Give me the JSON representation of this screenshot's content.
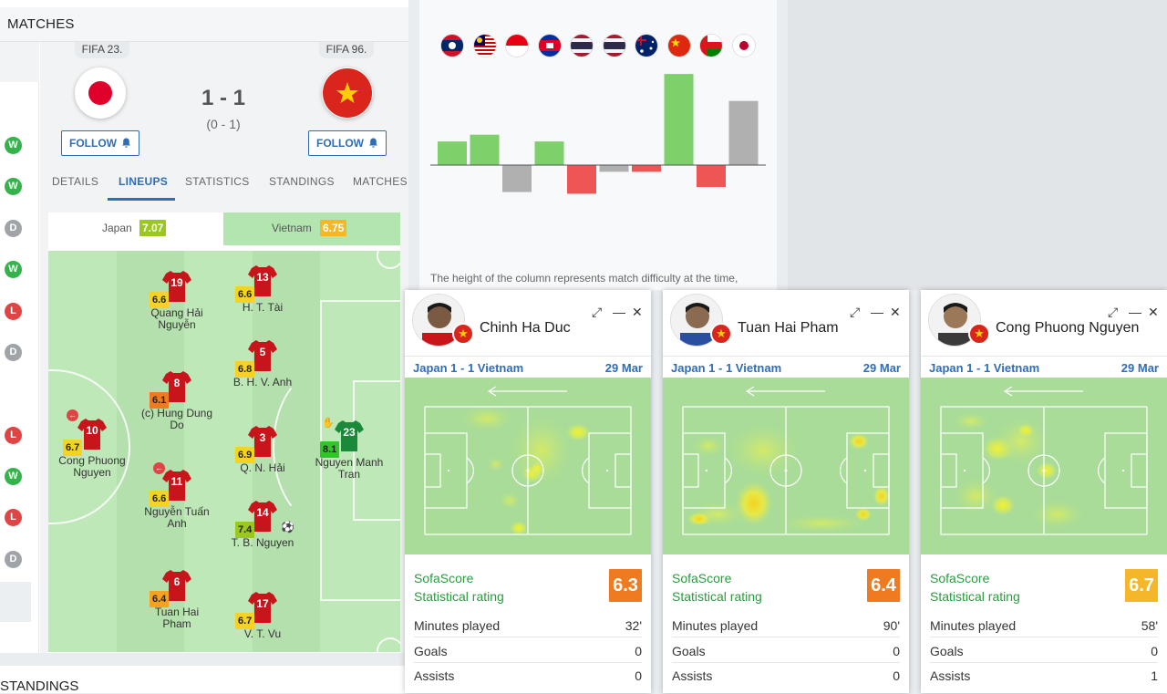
{
  "matches_header": "MATCHES",
  "standings_header": "STANDINGS",
  "form": [
    "W",
    "W",
    "D",
    "W",
    "L",
    "D",
    "L",
    "W",
    "L",
    "D"
  ],
  "match": {
    "home": {
      "fifa": "FIFA 23.",
      "flag": "japan",
      "follow": "FOLLOW"
    },
    "away": {
      "fifa": "FIFA 96.",
      "flag": "vietnam",
      "follow": "FOLLOW"
    },
    "score": "1 - 1",
    "halftime": "(0 - 1)"
  },
  "tabs": [
    "DETAILS",
    "LINEUPS",
    "STATISTICS",
    "STANDINGS",
    "MATCHES"
  ],
  "active_tab": "LINEUPS",
  "lineup": {
    "home_team": "Japan",
    "home_rating": "7.07",
    "away_team": "Vietnam",
    "away_rating": "6.75",
    "players": [
      {
        "num": "10",
        "rating": "6.7",
        "name": "Cong Phuong Nguyen",
        "kit": "red"
      },
      {
        "num": "19",
        "rating": "6.6",
        "name": "Quang Hải Nguyễn",
        "kit": "red"
      },
      {
        "num": "8",
        "rating": "6.1",
        "name": "(c) Hung Dung Do",
        "kit": "red"
      },
      {
        "num": "11",
        "rating": "6.6",
        "name": "Nguyễn Tuấn Anh",
        "kit": "red"
      },
      {
        "num": "6",
        "rating": "6.4",
        "name": "Tuan Hai Pham",
        "kit": "red"
      },
      {
        "num": "13",
        "rating": "6.6",
        "name": "H. T. Tài",
        "kit": "red"
      },
      {
        "num": "5",
        "rating": "6.8",
        "name": "B. H. V. Anh",
        "kit": "red"
      },
      {
        "num": "3",
        "rating": "6.9",
        "name": "Q. N. Hải",
        "kit": "red"
      },
      {
        "num": "14",
        "rating": "7.4",
        "name": "T. B. Nguyen",
        "kit": "red"
      },
      {
        "num": "17",
        "rating": "6.7",
        "name": "V. T. Vu",
        "kit": "red"
      },
      {
        "num": "23",
        "rating": "8.1",
        "name": "Nguyen Manh Tran",
        "kit": "green"
      }
    ]
  },
  "difficulty": {
    "flags": [
      "laos",
      "malaysia",
      "indonesia",
      "cambodia",
      "thailand",
      "thailand",
      "australia",
      "china",
      "oman",
      "japan"
    ],
    "caption": "The height of the column represents match difficulty at the time,",
    "bars": [
      {
        "value": 0.7,
        "result": "W"
      },
      {
        "value": 0.9,
        "result": "W"
      },
      {
        "value": -0.8,
        "result": "D"
      },
      {
        "value": 0.7,
        "result": "W"
      },
      {
        "value": -0.85,
        "result": "L"
      },
      {
        "value": -0.2,
        "result": "D"
      },
      {
        "value": -0.2,
        "result": "L"
      },
      {
        "value": 2.7,
        "result": "W"
      },
      {
        "value": -0.65,
        "result": "L"
      },
      {
        "value": 1.9,
        "result": "D"
      }
    ]
  },
  "colors": {
    "win": "#34b34a",
    "loss": "#e04545",
    "draw": "#a0a4a8",
    "accent": "#2f6db5"
  },
  "cards": [
    {
      "name": "Chinh Ha Duc",
      "match": "Japan 1 - 1 Vietnam",
      "date": "29 Mar",
      "rating_label_1": "SofaScore",
      "rating_label_2": "Statistical rating",
      "rating": "6.3",
      "rating_color": "#f07a1f",
      "stats": [
        {
          "k": "Minutes played",
          "v": "32'"
        },
        {
          "k": "Goals",
          "v": "0"
        },
        {
          "k": "Assists",
          "v": "0"
        }
      ]
    },
    {
      "name": "Tuan Hai Pham",
      "match": "Japan 1 - 1 Vietnam",
      "date": "29 Mar",
      "rating_label_1": "SofaScore",
      "rating_label_2": "Statistical rating",
      "rating": "6.4",
      "rating_color": "#f07a1f",
      "stats": [
        {
          "k": "Minutes played",
          "v": "90'"
        },
        {
          "k": "Goals",
          "v": "0"
        },
        {
          "k": "Assists",
          "v": "0"
        }
      ]
    },
    {
      "name": "Cong Phuong Nguyen",
      "match": "Japan 1 - 1 Vietnam",
      "date": "29 Mar",
      "rating_label_1": "SofaScore",
      "rating_label_2": "Statistical rating",
      "rating": "6.7",
      "rating_color": "#f5b72a",
      "stats": [
        {
          "k": "Minutes played",
          "v": "58'"
        },
        {
          "k": "Goals",
          "v": "0"
        },
        {
          "k": "Assists",
          "v": "1"
        }
      ]
    }
  ]
}
